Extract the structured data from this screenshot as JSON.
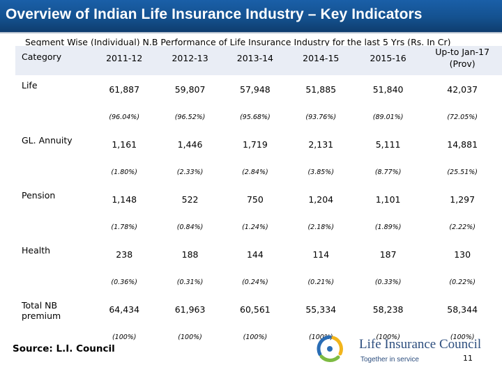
{
  "title": "Overview of Indian Life Insurance Industry – Key Indicators",
  "subtitle": "Segment Wise (Individual) N.B Performance of Life Insurance Industry for the last 5 Yrs (Rs. In Cr)",
  "table": {
    "header": {
      "category": "Category",
      "years": [
        "2011-12",
        "2012-13",
        "2013-14",
        "2014-15",
        "2015-16"
      ],
      "last_line1": "Up-to Jan-17",
      "last_line2": "(Prov)"
    },
    "rows": [
      {
        "category": "Life",
        "values": [
          "61,887",
          "59,807",
          "57,948",
          "51,885",
          "51,840",
          "42,037"
        ],
        "percents": [
          "(96.04%)",
          "(96.52%)",
          "(95.68%)",
          "(93.76%)",
          "(89.01%)",
          "(72.05%)"
        ]
      },
      {
        "category": "GL. Annuity",
        "values": [
          "1,161",
          "1,446",
          "1,719",
          "2,131",
          "5,111",
          "14,881"
        ],
        "percents": [
          "(1.80%)",
          "(2.33%)",
          "(2.84%)",
          "(3.85%)",
          "(8.77%)",
          "(25.51%)"
        ]
      },
      {
        "category": "Pension",
        "values": [
          "1,148",
          "522",
          "750",
          "1,204",
          "1,101",
          "1,297"
        ],
        "percents": [
          "(1.78%)",
          "(0.84%)",
          "(1.24%)",
          "(2.18%)",
          "(1.89%)",
          "(2.22%)"
        ]
      },
      {
        "category": "Health",
        "values": [
          "238",
          "188",
          "144",
          "114",
          "187",
          "130"
        ],
        "percents": [
          "(0.36%)",
          "(0.31%)",
          "(0.24%)",
          "(0.21%)",
          "(0.33%)",
          "(0.22%)"
        ]
      },
      {
        "category_line1": "Total NB",
        "category_line2": "premium",
        "values": [
          "64,434",
          "61,963",
          "60,561",
          "55,334",
          "58,238",
          "58,344"
        ],
        "percents": [
          "(100%)",
          "(100%)",
          "(100%)",
          "(100%)",
          "(100%)",
          "(100%)"
        ]
      }
    ]
  },
  "source": "Source: L.I. Council",
  "logo": {
    "name": "Life Insurance Council",
    "tagline": "Together in service",
    "icon": "lic-ribbon-logo-icon"
  },
  "slide_number": "11",
  "colors": {
    "title_bar": "#14518f",
    "title_text": "#ffffff",
    "zebra_row": "#e9edf5",
    "logo_text": "#2d4e7e",
    "logo_blue": "#2a6db5",
    "logo_green": "#7dbb42",
    "logo_yellow": "#f2b51c"
  }
}
